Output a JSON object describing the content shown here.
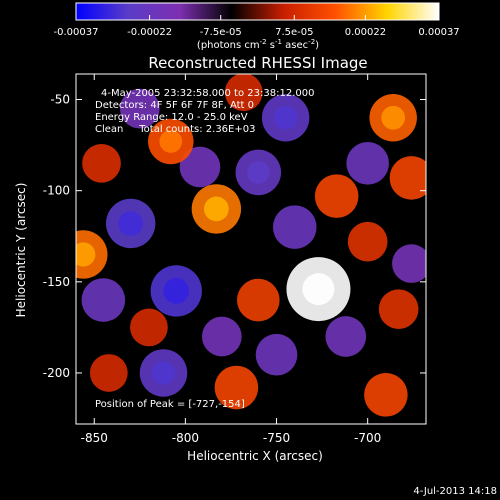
{
  "colorbar": {
    "ticks": [
      "-0.00037",
      "-0.00022",
      "-7.5e-05",
      "7.5e-05",
      "0.00022",
      "0.00037"
    ],
    "tick_values": [
      -0.00037,
      -0.00022,
      -7.5e-05,
      7.5e-05,
      0.00022,
      0.00037
    ],
    "range": [
      -0.00037,
      0.00037
    ],
    "units_main": "(photons cm",
    "units_exp1": "-2",
    "units_mid": " s",
    "units_exp2": "-1",
    "units_end": " asec",
    "units_exp3": "-2",
    "units_close": ")",
    "colors": [
      "#0000ff",
      "#5a3cc8",
      "#7d2fb0",
      "#000000",
      "#c81e00",
      "#ff5000",
      "#ffd400",
      "#ffffff"
    ]
  },
  "plot": {
    "title": "Reconstructed RHESSI Image",
    "info_lines": [
      "4-May-2005 23:32:58.000 to 23:38:12.000",
      "Detectors: 4F 5F 6F 7F 8F, Att 0",
      "Energy Range: 12.0 - 25.0 keV",
      "Clean     Total counts: 2.36E+03"
    ],
    "peak_text": "Position of Peak = [-727,-154]",
    "xlabel": "Heliocentric X (arcsec)",
    "ylabel": "Heliocentric Y (arcsec)",
    "x_ticks": [
      "-850",
      "-800",
      "-750",
      "-700"
    ],
    "y_ticks": [
      "-50",
      "-100",
      "-150",
      "-200"
    ]
  },
  "chart_data": {
    "type": "heatmap",
    "title": "Reconstructed RHESSI Image",
    "xlabel": "Heliocentric X (arcsec)",
    "ylabel": "Heliocentric Y (arcsec)",
    "xlim": [
      -860,
      -668
    ],
    "ylim": [
      -228,
      -36
    ],
    "x_ticks": [
      -850,
      -800,
      -750,
      -700
    ],
    "y_ticks": [
      -50,
      -100,
      -150,
      -200
    ],
    "peak": {
      "x": -727,
      "y": -154,
      "value": 0.00037
    },
    "sources": [
      {
        "x": -727,
        "y": -154,
        "value": 0.00037
      },
      {
        "x": -783,
        "y": -110,
        "value": 0.00022
      },
      {
        "x": -808,
        "y": -73,
        "value": 0.00018
      },
      {
        "x": -717,
        "y": -103,
        "value": 0.00016
      },
      {
        "x": -686,
        "y": -60,
        "value": 0.0002
      },
      {
        "x": -676,
        "y": -93,
        "value": 0.00016
      },
      {
        "x": -856,
        "y": -135,
        "value": 0.00021
      },
      {
        "x": -772,
        "y": -208,
        "value": 0.00016
      },
      {
        "x": -690,
        "y": -212,
        "value": 0.00016
      },
      {
        "x": -760,
        "y": -160,
        "value": 0.00015
      },
      {
        "x": -683,
        "y": -165,
        "value": 0.00012
      },
      {
        "x": -842,
        "y": -200,
        "value": 0.0001
      },
      {
        "x": -846,
        "y": -85,
        "value": 0.00011
      },
      {
        "x": -820,
        "y": -175,
        "value": 0.0001
      },
      {
        "x": -700,
        "y": -128,
        "value": 0.00012
      },
      {
        "x": -768,
        "y": -46,
        "value": 0.0001
      },
      {
        "x": -830,
        "y": -118,
        "value": -0.00022
      },
      {
        "x": -805,
        "y": -155,
        "value": -0.00024
      },
      {
        "x": -812,
        "y": -200,
        "value": -0.0002
      },
      {
        "x": -760,
        "y": -90,
        "value": -0.00018
      },
      {
        "x": -745,
        "y": -60,
        "value": -0.0002
      },
      {
        "x": -740,
        "y": -120,
        "value": -0.00016
      },
      {
        "x": -845,
        "y": -160,
        "value": -0.00016
      },
      {
        "x": -700,
        "y": -85,
        "value": -0.00015
      },
      {
        "x": -792,
        "y": -87,
        "value": -0.00013
      },
      {
        "x": -750,
        "y": -190,
        "value": -0.00014
      },
      {
        "x": -712,
        "y": -180,
        "value": -0.00013
      },
      {
        "x": -676,
        "y": -140,
        "value": -0.00011
      },
      {
        "x": -780,
        "y": -180,
        "value": -0.00012
      },
      {
        "x": -825,
        "y": -55,
        "value": -0.00012
      }
    ]
  },
  "timestamp": "4-Jul-2013 14:18"
}
